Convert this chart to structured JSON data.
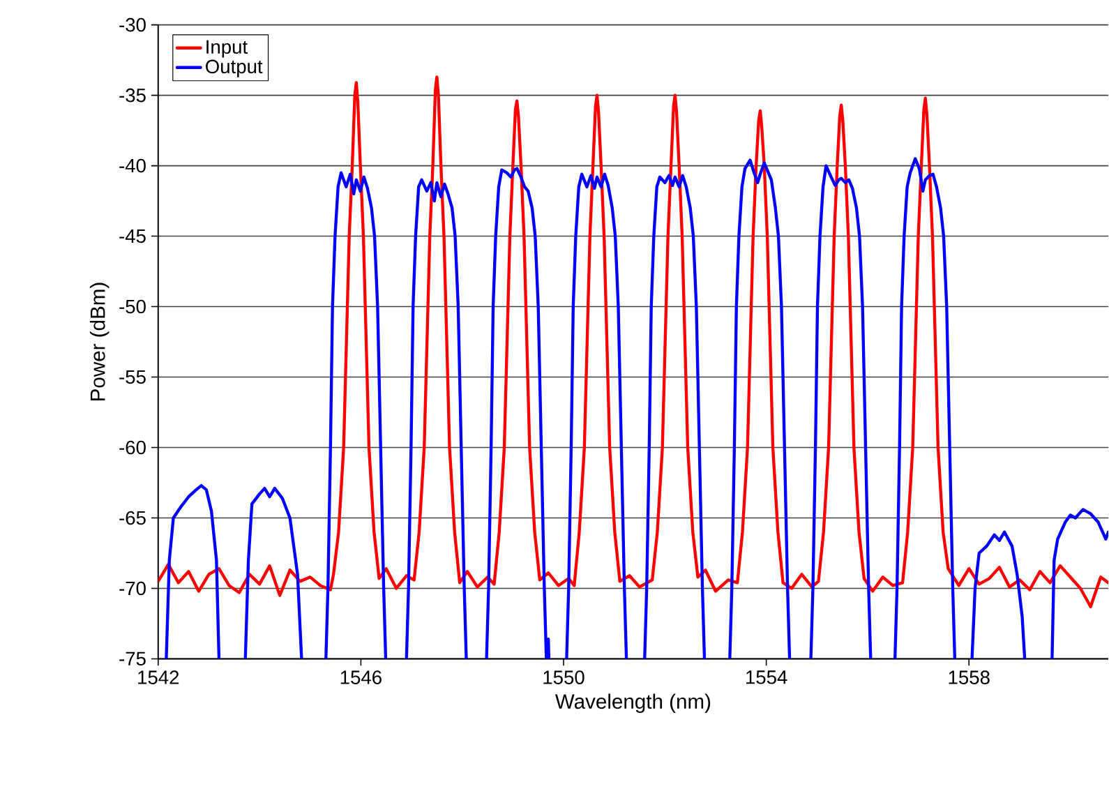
{
  "chart_data": {
    "type": "line",
    "xlabel": "Wavelength (nm)",
    "ylabel": "Power (dBm)",
    "xlim": [
      1542,
      1560.75
    ],
    "xticks": [
      1542,
      1546,
      1550,
      1554,
      1558
    ],
    "ylim": [
      -75,
      -30
    ],
    "yticks": [
      -30,
      -35,
      -40,
      -45,
      -50,
      -55,
      -60,
      -65,
      -70,
      -75
    ],
    "grid": "y",
    "legend": "top left",
    "marker": "none",
    "line_style": "solid",
    "series": [
      {
        "name": "Input",
        "color": "#ff0000",
        "x": [
          1542.0,
          1542.2,
          1542.4,
          1542.6,
          1542.8,
          1543.0,
          1543.2,
          1543.4,
          1543.6,
          1543.8,
          1544.0,
          1544.2,
          1544.4,
          1544.6,
          1544.8,
          1545.0,
          1545.2,
          1545.4,
          1545.46,
          1545.56,
          1545.66,
          1545.77,
          1545.83,
          1545.88,
          1545.91,
          1545.94,
          1545.99,
          1546.05,
          1546.16,
          1546.26,
          1546.36,
          1546.5,
          1546.7,
          1546.9,
          1547.05,
          1547.15,
          1547.25,
          1547.36,
          1547.42,
          1547.47,
          1547.5,
          1547.53,
          1547.58,
          1547.64,
          1547.75,
          1547.85,
          1547.95,
          1548.1,
          1548.3,
          1548.5,
          1548.63,
          1548.73,
          1548.83,
          1548.94,
          1549.0,
          1549.05,
          1549.08,
          1549.11,
          1549.16,
          1549.22,
          1549.33,
          1549.43,
          1549.53,
          1549.7,
          1549.9,
          1550.1,
          1550.21,
          1550.31,
          1550.41,
          1550.52,
          1550.58,
          1550.63,
          1550.66,
          1550.69,
          1550.74,
          1550.8,
          1550.91,
          1551.01,
          1551.11,
          1551.3,
          1551.5,
          1551.65,
          1551.75,
          1551.85,
          1551.95,
          1552.06,
          1552.12,
          1552.17,
          1552.2,
          1552.23,
          1552.28,
          1552.34,
          1552.45,
          1552.55,
          1552.65,
          1552.8,
          1553.0,
          1553.25,
          1553.43,
          1553.53,
          1553.63,
          1553.74,
          1553.8,
          1553.85,
          1553.88,
          1553.91,
          1553.96,
          1554.02,
          1554.13,
          1554.23,
          1554.33,
          1554.5,
          1554.7,
          1554.9,
          1555.03,
          1555.13,
          1555.23,
          1555.34,
          1555.4,
          1555.45,
          1555.48,
          1555.51,
          1555.56,
          1555.62,
          1555.73,
          1555.83,
          1555.93,
          1556.1,
          1556.3,
          1556.5,
          1556.69,
          1556.79,
          1556.89,
          1557.0,
          1557.06,
          1557.11,
          1557.14,
          1557.17,
          1557.22,
          1557.28,
          1557.39,
          1557.49,
          1557.59,
          1557.8,
          1558.0,
          1558.2,
          1558.4,
          1558.6,
          1558.8,
          1559.0,
          1559.2,
          1559.4,
          1559.6,
          1559.8,
          1560.0,
          1560.2,
          1560.4,
          1560.6,
          1560.75
        ],
        "values": [
          -69.5,
          -68.3,
          -69.6,
          -68.8,
          -70.2,
          -69.0,
          -68.6,
          -69.8,
          -70.3,
          -69.0,
          -69.7,
          -68.4,
          -70.5,
          -68.7,
          -69.5,
          -69.2,
          -69.8,
          -70.1,
          -69.0,
          -66,
          -60,
          -45,
          -40,
          -35,
          -34.1,
          -35.5,
          -40,
          -45,
          -60,
          -66,
          -69.3,
          -68.6,
          -70.0,
          -69.1,
          -69.4,
          -66,
          -60,
          -45,
          -40,
          -34.6,
          -33.7,
          -35,
          -40,
          -45,
          -60,
          -66,
          -69.6,
          -68.8,
          -69.9,
          -69.2,
          -69.7,
          -66,
          -60,
          -45,
          -40,
          -36,
          -35.4,
          -36.5,
          -40,
          -45,
          -60,
          -66,
          -69.4,
          -68.9,
          -69.8,
          -69.3,
          -69.8,
          -66,
          -60,
          -45,
          -40,
          -35.8,
          -35.0,
          -36.2,
          -40,
          -45,
          -60,
          -66,
          -69.5,
          -69.1,
          -69.9,
          -69.6,
          -69.4,
          -66,
          -60,
          -45,
          -40,
          -35.8,
          -35.0,
          -36.2,
          -40,
          -45,
          -60,
          -66,
          -69.2,
          -68.7,
          -70.2,
          -69.4,
          -69.6,
          -66,
          -60,
          -45,
          -40,
          -36.8,
          -36.1,
          -37.2,
          -40,
          -45,
          -60,
          -66,
          -69.6,
          -70.0,
          -69.0,
          -69.9,
          -69.5,
          -66,
          -60,
          -45,
          -40,
          -36.5,
          -35.7,
          -36.8,
          -40,
          -45,
          -60,
          -66,
          -69.3,
          -70.2,
          -69.2,
          -69.8,
          -69.6,
          -66,
          -60,
          -45,
          -40,
          -36,
          -35.2,
          -36.4,
          -40,
          -45,
          -60,
          -66,
          -68.6,
          -69.8,
          -68.6,
          -69.7,
          -69.3,
          -68.5,
          -69.9,
          -69.4,
          -70.1,
          -68.8,
          -69.6,
          -68.4,
          -69.2,
          -70.0,
          -71.3,
          -69.2,
          -69.6
        ]
      },
      {
        "name": "Output",
        "color": "#0000ff",
        "x": [
          1542.16,
          1542.22,
          1542.3,
          1542.45,
          1542.6,
          1542.75,
          1542.85,
          1542.95,
          1543.05,
          1543.15,
          1543.2,
          1543.4,
          1543.72,
          1543.78,
          1543.85,
          1544.0,
          1544.1,
          1544.2,
          1544.3,
          1544.45,
          1544.6,
          1544.75,
          1544.83,
          1545.0,
          1545.31,
          1545.35,
          1545.4,
          1545.44,
          1545.49,
          1545.55,
          1545.61,
          1545.71,
          1545.79,
          1545.86,
          1545.91,
          1545.99,
          1546.06,
          1546.13,
          1546.21,
          1546.27,
          1546.33,
          1546.39,
          1546.45,
          1546.49,
          1546.6,
          1546.9,
          1546.94,
          1546.99,
          1547.03,
          1547.08,
          1547.14,
          1547.2,
          1547.3,
          1547.38,
          1547.45,
          1547.5,
          1547.58,
          1547.65,
          1547.72,
          1547.8,
          1547.86,
          1547.92,
          1547.98,
          1548.04,
          1548.08,
          1548.2,
          1548.48,
          1548.52,
          1548.57,
          1548.61,
          1548.66,
          1548.72,
          1548.78,
          1548.88,
          1548.96,
          1549.03,
          1549.08,
          1549.16,
          1549.23,
          1549.3,
          1549.38,
          1549.44,
          1549.5,
          1549.56,
          1549.62,
          1549.66,
          1549.68,
          1549.69,
          1549.7,
          1549.71,
          1549.8,
          1550.06,
          1550.1,
          1550.15,
          1550.19,
          1550.24,
          1550.3,
          1550.36,
          1550.46,
          1550.54,
          1550.61,
          1550.66,
          1550.74,
          1550.81,
          1550.88,
          1550.96,
          1551.02,
          1551.08,
          1551.14,
          1551.2,
          1551.24,
          1551.4,
          1551.6,
          1551.64,
          1551.69,
          1551.73,
          1551.78,
          1551.84,
          1551.9,
          1552.0,
          1552.08,
          1552.15,
          1552.2,
          1552.28,
          1552.35,
          1552.42,
          1552.5,
          1552.56,
          1552.62,
          1552.68,
          1552.74,
          1552.78,
          1552.9,
          1553.28,
          1553.32,
          1553.37,
          1553.41,
          1553.46,
          1553.52,
          1553.58,
          1553.68,
          1553.76,
          1553.83,
          1553.88,
          1553.96,
          1554.03,
          1554.1,
          1554.18,
          1554.24,
          1554.3,
          1554.36,
          1554.42,
          1554.46,
          1554.6,
          1554.88,
          1554.92,
          1554.97,
          1555.01,
          1555.06,
          1555.12,
          1555.18,
          1555.28,
          1555.36,
          1555.43,
          1555.48,
          1555.56,
          1555.63,
          1555.7,
          1555.78,
          1555.84,
          1555.9,
          1555.96,
          1556.02,
          1556.06,
          1556.3,
          1556.54,
          1556.58,
          1556.63,
          1556.67,
          1556.72,
          1556.78,
          1556.84,
          1556.94,
          1557.02,
          1557.09,
          1557.14,
          1557.22,
          1557.29,
          1557.36,
          1557.44,
          1557.5,
          1557.56,
          1557.62,
          1557.68,
          1557.72,
          1557.9,
          1558.06,
          1558.12,
          1558.2,
          1558.35,
          1558.5,
          1558.6,
          1558.7,
          1558.85,
          1558.95,
          1559.05,
          1559.1,
          1559.4,
          1559.64,
          1559.68,
          1559.75,
          1559.9,
          1560.0,
          1560.1,
          1560.25,
          1560.4,
          1560.55,
          1560.7,
          1560.75
        ],
        "values": [
          -75,
          -68,
          -65,
          -64.2,
          -63.5,
          -63.0,
          -62.7,
          -63.0,
          -64.5,
          -68,
          -75,
          null,
          -75,
          -68,
          -64,
          -63.3,
          -62.9,
          -63.5,
          -62.9,
          -63.6,
          -65,
          -69,
          -75,
          null,
          -75,
          -70,
          -60,
          -50,
          -45,
          -41.5,
          -40.5,
          -41.5,
          -40.6,
          -42,
          -41,
          -41.8,
          -40.8,
          -41.6,
          -43,
          -45,
          -50,
          -60,
          -70,
          -75,
          null,
          -75,
          -70,
          -60,
          -50,
          -45,
          -41.5,
          -41.0,
          -41.8,
          -41.2,
          -42.5,
          -41.2,
          -42.2,
          -41.3,
          -42.0,
          -43,
          -45,
          -50,
          -60,
          -70,
          -75,
          null,
          -75,
          -70,
          -60,
          -50,
          -45,
          -41.5,
          -40.3,
          -40.5,
          -40.8,
          -40.3,
          -40.2,
          -40.8,
          -41.5,
          -41.8,
          -43,
          -45,
          -50,
          -60,
          -70,
          -75,
          null,
          -75,
          -73.6,
          -75,
          null,
          -75,
          -70,
          -60,
          -50,
          -45,
          -41.5,
          -40.6,
          -41.5,
          -40.7,
          -41.6,
          -40.8,
          -41.5,
          -40.6,
          -41.4,
          -43,
          -45,
          -50,
          -60,
          -70,
          -75,
          null,
          -75,
          -70,
          -60,
          -50,
          -45,
          -41.5,
          -40.8,
          -41.2,
          -40.7,
          -41.4,
          -40.8,
          -41.5,
          -40.7,
          -41.5,
          -43,
          -45,
          -50,
          -60,
          -70,
          -75,
          null,
          -75,
          -70,
          -60,
          -50,
          -45,
          -41.5,
          -40.2,
          -39.6,
          -40.5,
          -41.2,
          -40.6,
          -39.8,
          -40.4,
          -41.0,
          -43,
          -45,
          -50,
          -60,
          -70,
          -75,
          null,
          -75,
          -70,
          -60,
          -50,
          -45,
          -41.5,
          -40.0,
          -40.8,
          -41.4,
          -41.0,
          -40.9,
          -41.2,
          -41.0,
          -41.6,
          -43,
          -45,
          -50,
          -60,
          -70,
          -75,
          null,
          -75,
          -70,
          -60,
          -50,
          -45,
          -41.5,
          -40.5,
          -39.5,
          -40.2,
          -41.8,
          -41.0,
          -40.7,
          -40.6,
          -41.5,
          -43,
          -45,
          -50,
          -60,
          -70,
          -75,
          null,
          -75,
          -70,
          -67.5,
          -67.0,
          -66.2,
          -66.6,
          -66.0,
          -67.0,
          -69,
          -72,
          -75,
          null,
          -75,
          -68,
          -66.5,
          -65.3,
          -64.8,
          -65.0,
          -64.4,
          -64.7,
          -65.3,
          -66.5,
          -66.0
        ]
      }
    ]
  }
}
